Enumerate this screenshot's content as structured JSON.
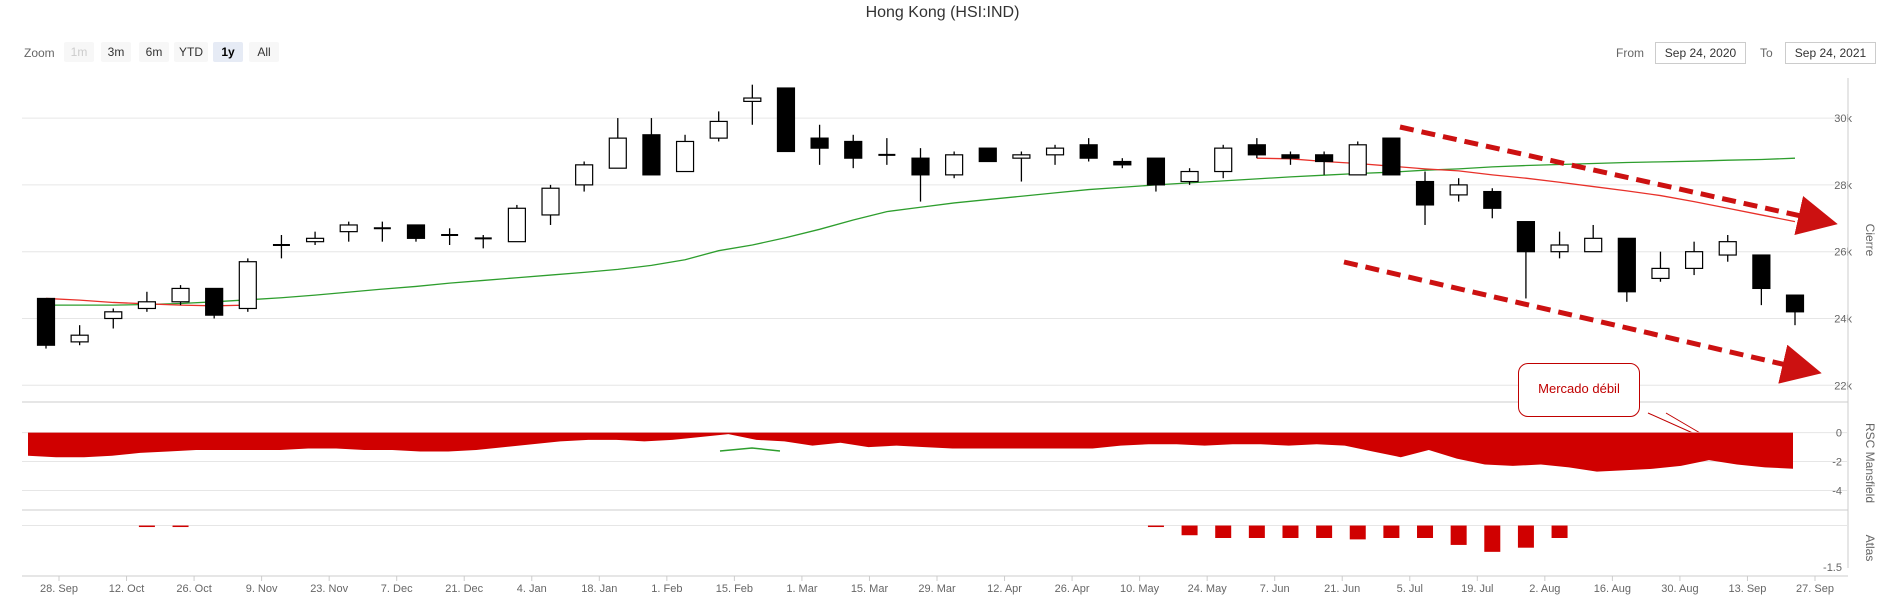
{
  "title": "Hong Kong (HSI:IND)",
  "zoom": {
    "label": "Zoom",
    "buttons": [
      {
        "label": "1m",
        "state": "disabled"
      },
      {
        "label": "3m",
        "state": "normal"
      },
      {
        "label": "6m",
        "state": "normal"
      },
      {
        "label": "YTD",
        "state": "normal"
      },
      {
        "label": "1y",
        "state": "active"
      },
      {
        "label": "All",
        "state": "normal"
      }
    ]
  },
  "range": {
    "from_label": "From",
    "from_value": "Sep 24, 2020",
    "to_label": "To",
    "to_value": "Sep 24, 2021"
  },
  "annotation": "Mercado débil",
  "colors": {
    "up": "#ffffff",
    "down": "#000000",
    "ma_green": "#2e9e2e",
    "ma_red": "#e8312a",
    "rsc_fill": "#d00000",
    "annot_border": "#c00000",
    "arrow": "#cc1111",
    "grid": "#e6e6e6"
  },
  "chart_data": [
    {
      "type": "candlestick",
      "ylabel": "Cierre",
      "ylim": [
        21500,
        31200
      ],
      "yticks": [
        "22k",
        "24k",
        "26k",
        "28k",
        "30k"
      ],
      "ytick_values": [
        22000,
        24000,
        26000,
        28000,
        30000
      ],
      "x_labels": [
        "28. Sep",
        "12. Oct",
        "26. Oct",
        "9. Nov",
        "23. Nov",
        "7. Dec",
        "21. Dec",
        "4. Jan",
        "18. Jan",
        "1. Feb",
        "15. Feb",
        "1. Mar",
        "15. Mar",
        "29. Mar",
        "12. Apr",
        "26. Apr",
        "10. May",
        "24. May",
        "7. Jun",
        "21. Jun",
        "5. Jul",
        "19. Jul",
        "2. Aug",
        "16. Aug",
        "30. Aug",
        "13. Sep",
        "27. Sep"
      ],
      "ohlc": [
        [
          24600,
          24600,
          23100,
          23200
        ],
        [
          23300,
          23800,
          23200,
          23500
        ],
        [
          24000,
          24300,
          23700,
          24200
        ],
        [
          24300,
          24800,
          24200,
          24500
        ],
        [
          24500,
          25000,
          24400,
          24900
        ],
        [
          24900,
          24900,
          24000,
          24100
        ],
        [
          24300,
          25800,
          24200,
          25700
        ],
        [
          26200,
          26500,
          25800,
          26200
        ],
        [
          26300,
          26600,
          26200,
          26400
        ],
        [
          26600,
          26900,
          26300,
          26800
        ],
        [
          26700,
          26900,
          26300,
          26700
        ],
        [
          26800,
          26800,
          26300,
          26400
        ],
        [
          26500,
          26700,
          26200,
          26500
        ],
        [
          26400,
          26500,
          26100,
          26400
        ],
        [
          26300,
          27400,
          26300,
          27300
        ],
        [
          27100,
          28000,
          26800,
          27900
        ],
        [
          28000,
          28700,
          27800,
          28600
        ],
        [
          28500,
          30000,
          28500,
          29400
        ],
        [
          29500,
          30000,
          28300,
          28300
        ],
        [
          28400,
          29500,
          28400,
          29300
        ],
        [
          29400,
          30200,
          29300,
          29900
        ],
        [
          30500,
          31000,
          29800,
          30600
        ],
        [
          30900,
          30900,
          29000,
          29000
        ],
        [
          29400,
          29800,
          28600,
          29100
        ],
        [
          29300,
          29500,
          28500,
          28800
        ],
        [
          28900,
          29400,
          28600,
          28900
        ],
        [
          28800,
          29100,
          27500,
          28300
        ],
        [
          28300,
          29000,
          28200,
          28900
        ],
        [
          29100,
          29100,
          28700,
          28700
        ],
        [
          28800,
          29000,
          28100,
          28900
        ],
        [
          28900,
          29200,
          28600,
          29100
        ],
        [
          29200,
          29400,
          28700,
          28800
        ],
        [
          28700,
          28800,
          28500,
          28600
        ],
        [
          28800,
          28800,
          27800,
          28000
        ],
        [
          28100,
          28500,
          28000,
          28400
        ],
        [
          28400,
          29200,
          28200,
          29100
        ],
        [
          29200,
          29400,
          28800,
          28900
        ],
        [
          28900,
          29000,
          28600,
          28800
        ],
        [
          28900,
          29000,
          28300,
          28700
        ],
        [
          28300,
          29300,
          28300,
          29200
        ],
        [
          29400,
          29400,
          28300,
          28300
        ],
        [
          28100,
          28400,
          26800,
          27400
        ],
        [
          27700,
          28200,
          27500,
          28000
        ],
        [
          27800,
          27900,
          27000,
          27300
        ],
        [
          26900,
          26900,
          24600,
          26000
        ],
        [
          26000,
          26600,
          25800,
          26200
        ],
        [
          26000,
          26800,
          26000,
          26400
        ],
        [
          26400,
          26400,
          24500,
          24800
        ],
        [
          25200,
          26000,
          25100,
          25500
        ],
        [
          25500,
          26300,
          25300,
          26000
        ],
        [
          25900,
          26500,
          25700,
          26300
        ],
        [
          25900,
          25900,
          24400,
          24900
        ],
        [
          24700,
          24700,
          23800,
          24200
        ]
      ],
      "ma_green": [
        24400,
        24400,
        24400,
        24420,
        24450,
        24500,
        24560,
        24620,
        24700,
        24790,
        24880,
        24960,
        25060,
        25140,
        25220,
        25300,
        25380,
        25470,
        25590,
        25760,
        26030,
        26200,
        26420,
        26670,
        26950,
        27200,
        27330,
        27460,
        27560,
        27660,
        27760,
        27860,
        27930,
        28000,
        28060,
        28120,
        28180,
        28240,
        28290,
        28340,
        28380,
        28440,
        28480,
        28540,
        28580,
        28610,
        28640,
        28670,
        28690,
        28710,
        28740,
        28760,
        28800
      ],
      "ma_red": [
        24600,
        24550,
        24480,
        24440,
        24400,
        24380,
        24400
      ],
      "ma_red_tail": [
        28800,
        28780,
        28700,
        28640,
        28560,
        28480,
        28420,
        28300,
        28200,
        28080,
        27950,
        27820,
        27680,
        27500,
        27300,
        27100,
        26900
      ],
      "annotations": [
        "Mercado débil"
      ]
    },
    {
      "type": "area",
      "ylabel": "RSC Mansfield",
      "ylim": [
        -4.8,
        0.6
      ],
      "yticks": [
        "0",
        "-2",
        "-4"
      ],
      "ytick_values": [
        0,
        -2,
        -4
      ],
      "values": [
        -1.6,
        -1.7,
        -1.7,
        -1.6,
        -1.4,
        -1.3,
        -1.2,
        -1.2,
        -1.2,
        -1.2,
        -1.1,
        -1.1,
        -1.2,
        -1.2,
        -1.3,
        -1.3,
        -1.2,
        -1.0,
        -0.8,
        -0.6,
        -0.5,
        -0.5,
        -0.6,
        -0.5,
        -0.3,
        -0.1,
        -0.5,
        -0.6,
        -0.9,
        -0.7,
        -1.0,
        -0.9,
        -1.0,
        -1.1,
        -1.1,
        -1.1,
        -1.1,
        -1.1,
        -1.1,
        -0.9,
        -0.8,
        -0.8,
        -0.9,
        -0.8,
        -0.8,
        -0.9,
        -0.8,
        -0.9,
        -1.3,
        -1.7,
        -1.2,
        -1.8,
        -2.2,
        -2.3,
        -2.2,
        -2.4,
        -2.7,
        -2.6,
        -2.5,
        -2.3,
        -1.9,
        -2.2,
        -2.4,
        -2.5
      ]
    },
    {
      "type": "bar",
      "ylabel": "Atlas",
      "ylim": [
        -1.75,
        0.2
      ],
      "yticks": [
        "-1.5"
      ],
      "ytick_values": [
        -1.5
      ],
      "values": [
        0,
        0,
        0,
        -0.02,
        -0.02,
        0,
        0,
        0,
        0,
        0,
        0,
        0,
        0,
        0,
        0,
        0,
        0,
        0,
        0,
        0,
        0,
        0,
        0,
        0,
        0,
        0,
        0,
        0,
        0,
        0,
        0,
        0,
        0,
        -0.02,
        -0.35,
        -0.45,
        -0.45,
        -0.45,
        -0.45,
        -0.5,
        -0.45,
        -0.45,
        -0.7,
        -0.95,
        -0.8,
        -0.45,
        0,
        0,
        0,
        0,
        0,
        0,
        0
      ]
    }
  ]
}
